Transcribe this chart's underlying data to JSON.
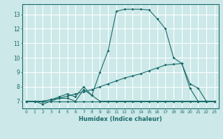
{
  "xlabel": "Humidex (Indice chaleur)",
  "bg_color": "#cce8e8",
  "grid_color": "#aad4d4",
  "line_color": "#1a6b6b",
  "xlim": [
    -0.5,
    23.5
  ],
  "ylim": [
    6.5,
    13.7
  ],
  "yticks": [
    7,
    8,
    9,
    10,
    11,
    12,
    13
  ],
  "xticks": [
    0,
    1,
    2,
    3,
    4,
    5,
    6,
    7,
    8,
    9,
    10,
    11,
    12,
    13,
    14,
    15,
    16,
    17,
    18,
    19,
    20,
    21,
    22,
    23
  ],
  "series": [
    [
      7.0,
      7.0,
      6.8,
      7.0,
      7.2,
      7.2,
      7.0,
      7.8,
      7.4,
      9.0,
      10.5,
      13.2,
      13.35,
      13.35,
      13.35,
      13.3,
      12.7,
      12.0,
      10.0,
      9.6,
      7.9,
      7.0,
      7.0,
      7.0
    ],
    [
      7.0,
      7.0,
      7.0,
      7.1,
      7.2,
      7.35,
      7.5,
      7.65,
      7.8,
      8.0,
      8.2,
      8.4,
      8.6,
      8.75,
      8.9,
      9.1,
      9.3,
      9.5,
      9.55,
      9.6,
      8.2,
      7.9,
      7.0,
      7.0
    ],
    [
      7.0,
      7.0,
      7.0,
      7.0,
      7.0,
      7.0,
      7.0,
      7.0,
      7.0,
      7.0,
      7.0,
      7.0,
      7.0,
      7.0,
      7.0,
      7.0,
      7.0,
      7.0,
      7.0,
      7.0,
      7.0,
      7.0,
      7.0,
      7.0
    ],
    [
      7.0,
      7.0,
      7.0,
      7.1,
      7.3,
      7.5,
      7.3,
      8.0,
      7.4,
      7.0,
      7.0,
      7.0,
      7.0,
      7.0,
      7.0,
      7.0,
      7.0,
      7.0,
      7.0,
      7.0,
      7.0,
      7.0,
      7.0,
      7.0
    ]
  ]
}
